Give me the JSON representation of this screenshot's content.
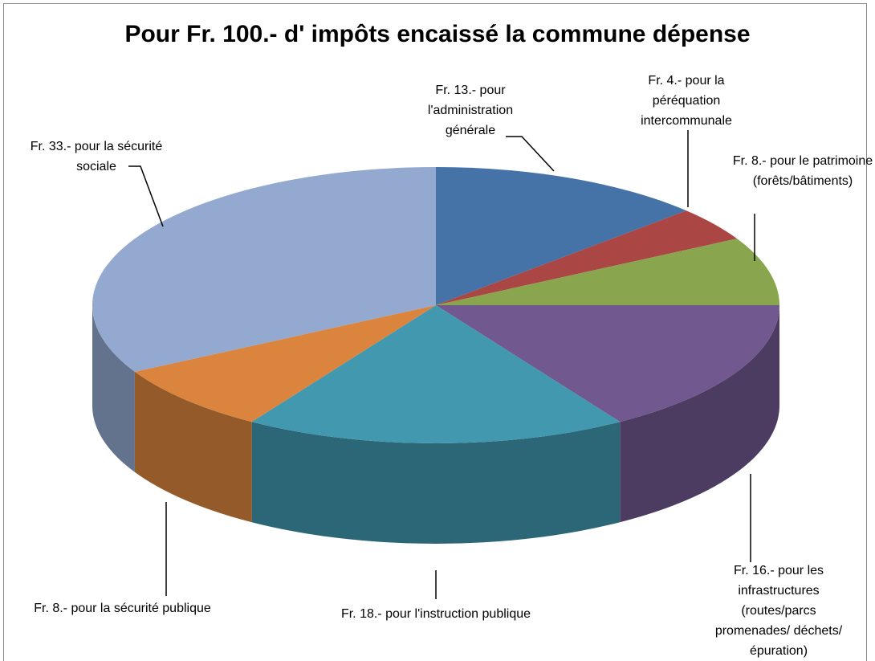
{
  "chart_data": {
    "type": "pie3d",
    "title": "Pour Fr. 100.- d' impôts encaissé la commune dépense",
    "values": [
      13,
      4,
      8,
      16,
      18,
      8,
      33
    ],
    "value_labels": [
      "Fr. 13.- pour l'administration générale",
      "Fr. 4.- pour la péréquation intercommunale",
      "Fr. 8.- pour le patrimoine (forêts/bâtiments)",
      "Fr. 16.- pour les infrastructures (routes/parcs promenades/ déchets/épuration)",
      "Fr. 18.- pour l'instruction publique",
      "Fr. 8.- pour la sécurité publique",
      "Fr. 33.- pour la sécurité sociale"
    ],
    "colors": [
      "#4572a7",
      "#aa4643",
      "#89a54e",
      "#71588f",
      "#4198af",
      "#db843d",
      "#93a9cf"
    ]
  }
}
